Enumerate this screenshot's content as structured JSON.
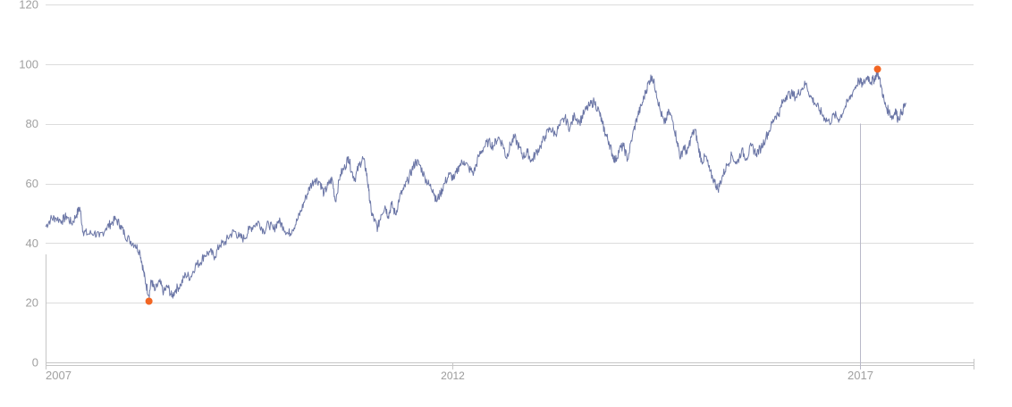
{
  "chart_data": {
    "type": "line",
    "title": "",
    "xlabel": "",
    "ylabel": "",
    "ylim": [
      0,
      120
    ],
    "yticks": [
      0,
      20,
      40,
      60,
      80,
      100,
      120
    ],
    "xticks": [
      {
        "year": 2007,
        "label": "2007"
      },
      {
        "year": 2012,
        "label": "2012"
      },
      {
        "year": 2017,
        "label": "2017"
      }
    ],
    "xlim": [
      2007.0,
      2018.4
    ],
    "grid": true,
    "legend": "none",
    "series_color": "#6b76a6",
    "marker_color": "#f26522",
    "cursor_year": 2017.0,
    "series": [
      {
        "values": [
          [
            2007.0,
            45.5
          ],
          [
            2007.06,
            48.0
          ],
          [
            2007.12,
            48.5
          ],
          [
            2007.2,
            47.5
          ],
          [
            2007.26,
            49.0
          ],
          [
            2007.32,
            46.5
          ],
          [
            2007.38,
            49.5
          ],
          [
            2007.42,
            52.0
          ],
          [
            2007.46,
            44.0
          ],
          [
            2007.52,
            43.0
          ],
          [
            2007.6,
            43.5
          ],
          [
            2007.66,
            42.0
          ],
          [
            2007.74,
            45.0
          ],
          [
            2007.8,
            46.5
          ],
          [
            2007.86,
            48.0
          ],
          [
            2007.92,
            46.0
          ],
          [
            2007.97,
            43.0
          ],
          [
            2008.03,
            41.0
          ],
          [
            2008.1,
            39.5
          ],
          [
            2008.16,
            37.0
          ],
          [
            2008.2,
            31.0
          ],
          [
            2008.23,
            26.5
          ],
          [
            2008.27,
            22.5
          ],
          [
            2008.3,
            27.5
          ],
          [
            2008.34,
            24.0
          ],
          [
            2008.4,
            27.0
          ],
          [
            2008.45,
            23.5
          ],
          [
            2008.5,
            25.5
          ],
          [
            2008.55,
            22.0
          ],
          [
            2008.6,
            24.5
          ],
          [
            2008.66,
            26.0
          ],
          [
            2008.72,
            29.5
          ],
          [
            2008.78,
            28.5
          ],
          [
            2008.84,
            32.5
          ],
          [
            2008.9,
            33.5
          ],
          [
            2008.95,
            36.0
          ],
          [
            2009.02,
            37.0
          ],
          [
            2009.08,
            35.5
          ],
          [
            2009.14,
            39.5
          ],
          [
            2009.2,
            40.0
          ],
          [
            2009.26,
            42.5
          ],
          [
            2009.32,
            44.0
          ],
          [
            2009.38,
            42.0
          ],
          [
            2009.44,
            41.5
          ],
          [
            2009.5,
            44.5
          ],
          [
            2009.56,
            46.0
          ],
          [
            2009.62,
            47.0
          ],
          [
            2009.68,
            44.0
          ],
          [
            2009.74,
            46.5
          ],
          [
            2009.8,
            44.5
          ],
          [
            2009.86,
            47.5
          ],
          [
            2009.92,
            45.5
          ],
          [
            2009.98,
            43.0
          ],
          [
            2010.03,
            44.5
          ],
          [
            2010.09,
            47.5
          ],
          [
            2010.14,
            51.0
          ],
          [
            2010.2,
            55.5
          ],
          [
            2010.25,
            59.0
          ],
          [
            2010.31,
            61.5
          ],
          [
            2010.37,
            60.5
          ],
          [
            2010.42,
            56.5
          ],
          [
            2010.47,
            59.5
          ],
          [
            2010.52,
            61.5
          ],
          [
            2010.56,
            54.0
          ],
          [
            2010.62,
            63.0
          ],
          [
            2010.68,
            65.5
          ],
          [
            2010.72,
            69.0
          ],
          [
            2010.76,
            64.0
          ],
          [
            2010.8,
            61.5
          ],
          [
            2010.85,
            66.0
          ],
          [
            2010.9,
            68.5
          ],
          [
            2010.94,
            64.0
          ],
          [
            2010.97,
            57.5
          ],
          [
            2011.0,
            50.5
          ],
          [
            2011.04,
            47.5
          ],
          [
            2011.08,
            45.0
          ],
          [
            2011.12,
            49.5
          ],
          [
            2011.17,
            52.5
          ],
          [
            2011.21,
            49.0
          ],
          [
            2011.25,
            53.0
          ],
          [
            2011.3,
            49.5
          ],
          [
            2011.35,
            55.5
          ],
          [
            2011.4,
            58.0
          ],
          [
            2011.45,
            61.0
          ],
          [
            2011.5,
            64.5
          ],
          [
            2011.55,
            67.5
          ],
          [
            2011.6,
            66.0
          ],
          [
            2011.66,
            62.0
          ],
          [
            2011.71,
            59.5
          ],
          [
            2011.76,
            58.0
          ],
          [
            2011.8,
            54.0
          ],
          [
            2011.85,
            56.5
          ],
          [
            2011.9,
            60.0
          ],
          [
            2011.96,
            63.0
          ],
          [
            2012.02,
            61.5
          ],
          [
            2012.08,
            66.0
          ],
          [
            2012.14,
            67.5
          ],
          [
            2012.2,
            65.0
          ],
          [
            2012.26,
            63.5
          ],
          [
            2012.32,
            69.0
          ],
          [
            2012.38,
            72.0
          ],
          [
            2012.44,
            74.0
          ],
          [
            2012.5,
            72.5
          ],
          [
            2012.56,
            75.5
          ],
          [
            2012.62,
            73.0
          ],
          [
            2012.66,
            68.5
          ],
          [
            2012.71,
            73.0
          ],
          [
            2012.76,
            75.5
          ],
          [
            2012.82,
            72.0
          ],
          [
            2012.87,
            69.0
          ],
          [
            2012.92,
            70.5
          ],
          [
            2012.97,
            67.5
          ],
          [
            2013.02,
            70.0
          ],
          [
            2013.08,
            72.5
          ],
          [
            2013.14,
            76.0
          ],
          [
            2013.2,
            78.5
          ],
          [
            2013.26,
            76.5
          ],
          [
            2013.32,
            79.5
          ],
          [
            2013.38,
            82.0
          ],
          [
            2013.44,
            78.5
          ],
          [
            2013.5,
            83.0
          ],
          [
            2013.56,
            80.5
          ],
          [
            2013.62,
            84.0
          ],
          [
            2013.68,
            86.0
          ],
          [
            2013.74,
            87.5
          ],
          [
            2013.8,
            84.0
          ],
          [
            2013.84,
            80.0
          ],
          [
            2013.88,
            76.5
          ],
          [
            2013.92,
            74.0
          ],
          [
            2013.96,
            70.0
          ],
          [
            2014.0,
            67.5
          ],
          [
            2014.05,
            71.5
          ],
          [
            2014.1,
            72.5
          ],
          [
            2014.15,
            68.0
          ],
          [
            2014.21,
            76.0
          ],
          [
            2014.27,
            82.5
          ],
          [
            2014.32,
            86.0
          ],
          [
            2014.37,
            90.5
          ],
          [
            2014.41,
            94.0
          ],
          [
            2014.45,
            96.0
          ],
          [
            2014.5,
            91.0
          ],
          [
            2014.55,
            84.5
          ],
          [
            2014.6,
            80.0
          ],
          [
            2014.66,
            84.0
          ],
          [
            2014.71,
            80.5
          ],
          [
            2014.76,
            74.0
          ],
          [
            2014.8,
            68.5
          ],
          [
            2014.84,
            72.5
          ],
          [
            2014.88,
            70.0
          ],
          [
            2014.93,
            75.5
          ],
          [
            2014.98,
            78.0
          ],
          [
            2015.02,
            72.0
          ],
          [
            2015.06,
            67.5
          ],
          [
            2015.11,
            69.0
          ],
          [
            2015.16,
            64.0
          ],
          [
            2015.22,
            60.5
          ],
          [
            2015.26,
            58.0
          ],
          [
            2015.31,
            62.0
          ],
          [
            2015.37,
            66.0
          ],
          [
            2015.43,
            69.5
          ],
          [
            2015.49,
            66.5
          ],
          [
            2015.55,
            71.0
          ],
          [
            2015.61,
            68.5
          ],
          [
            2015.67,
            72.5
          ],
          [
            2015.73,
            70.0
          ],
          [
            2015.79,
            72.0
          ],
          [
            2015.85,
            75.5
          ],
          [
            2015.91,
            79.0
          ],
          [
            2015.96,
            82.5
          ],
          [
            2016.01,
            83.5
          ],
          [
            2016.05,
            87.0
          ],
          [
            2016.1,
            89.5
          ],
          [
            2016.16,
            90.0
          ],
          [
            2016.22,
            89.0
          ],
          [
            2016.28,
            91.5
          ],
          [
            2016.34,
            93.5
          ],
          [
            2016.4,
            89.0
          ],
          [
            2016.45,
            87.0
          ],
          [
            2016.51,
            84.5
          ],
          [
            2016.57,
            82.0
          ],
          [
            2016.63,
            80.5
          ],
          [
            2016.69,
            83.0
          ],
          [
            2016.75,
            81.5
          ],
          [
            2016.81,
            85.0
          ],
          [
            2016.87,
            88.0
          ],
          [
            2016.93,
            91.5
          ],
          [
            2016.99,
            94.5
          ],
          [
            2017.04,
            93.0
          ],
          [
            2017.1,
            96.0
          ],
          [
            2017.14,
            94.0
          ],
          [
            2017.18,
            95.0
          ],
          [
            2017.22,
            97.5
          ],
          [
            2017.27,
            92.0
          ],
          [
            2017.31,
            86.5
          ],
          [
            2017.36,
            84.0
          ],
          [
            2017.41,
            82.0
          ],
          [
            2017.44,
            85.0
          ],
          [
            2017.47,
            81.5
          ],
          [
            2017.52,
            84.0
          ],
          [
            2017.57,
            87.0
          ]
        ]
      }
    ],
    "markers": [
      {
        "label": "min",
        "x": 2008.27,
        "y": 20.5
      },
      {
        "label": "max",
        "x": 2017.22,
        "y": 98.3
      }
    ]
  }
}
